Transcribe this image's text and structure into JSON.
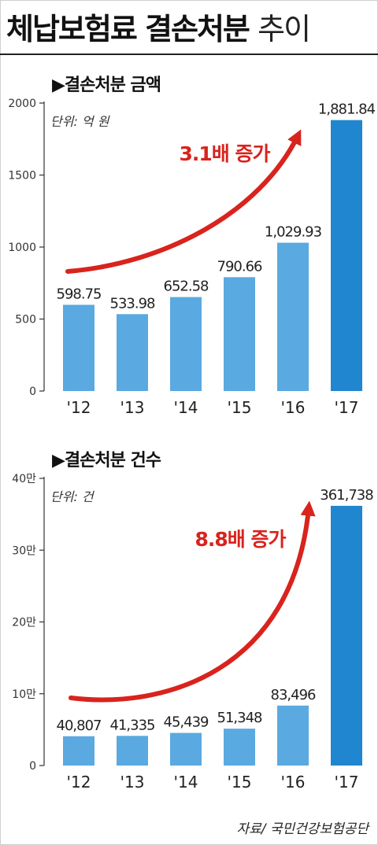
{
  "title": {
    "main": "체납보험료 결손처분",
    "light": "추이"
  },
  "source_note": "자료/ 국민건강보험공단",
  "colors": {
    "bar": "#5aa9e0",
    "bar_last": "#1f86cf",
    "arrow": "#d9231d",
    "axis": "#333333"
  },
  "chart_data": [
    {
      "type": "bar",
      "title": "▶결손처분 금액",
      "unit": "단위: 억 원",
      "categories": [
        "'12",
        "'13",
        "'14",
        "'15",
        "'16",
        "'17"
      ],
      "values": [
        598.75,
        533.98,
        652.58,
        790.66,
        1029.93,
        1881.84
      ],
      "value_labels": [
        "598.75",
        "533.98",
        "652.58",
        "790.66",
        "1,029.93",
        "1,881.84"
      ],
      "yticks": [
        0,
        500,
        1000,
        1500,
        2000
      ],
      "ytick_labels": [
        "0",
        "500",
        "1000",
        "1500",
        "2000"
      ],
      "ylim": [
        0,
        2000
      ],
      "annotation": "3.1배 증가",
      "grid": false
    },
    {
      "type": "bar",
      "title": "▶결손처분 건수",
      "unit": "단위: 건",
      "categories": [
        "'12",
        "'13",
        "'14",
        "'15",
        "'16",
        "'17"
      ],
      "values": [
        40807,
        41335,
        45439,
        51348,
        83496,
        361738
      ],
      "value_labels": [
        "40,807",
        "41,335",
        "45,439",
        "51,348",
        "83,496",
        "361,738"
      ],
      "yticks": [
        0,
        100000,
        200000,
        300000,
        400000
      ],
      "ytick_labels": [
        "0",
        "10만",
        "20만",
        "30만",
        "40만"
      ],
      "ylim": [
        0,
        400000
      ],
      "annotation": "8.8배 증가",
      "grid": false
    }
  ]
}
